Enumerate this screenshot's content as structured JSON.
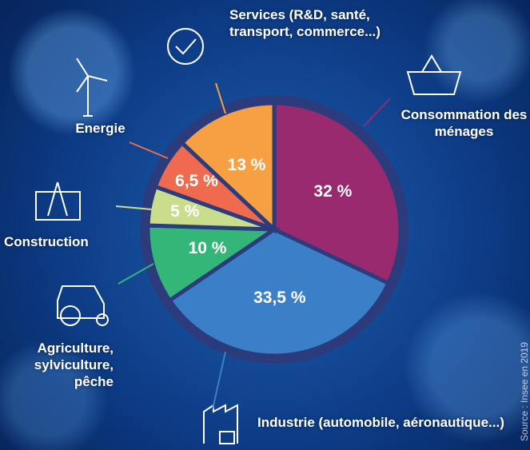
{
  "chart_data": {
    "type": "pie",
    "categories": [
      "Consommation des ménages",
      "Industrie (automobile, aéronautique...)",
      "Agriculture, sylviculture, pêche",
      "Construction",
      "Energie",
      "Services (R&D, santé, transport, commerce...)"
    ],
    "values": [
      32,
      33.5,
      10,
      5,
      6.5,
      13
    ],
    "value_labels": [
      "32 %",
      "33,5 %",
      "10 %",
      "5 %",
      "6,5 %",
      "13 %"
    ],
    "colors": [
      "#9a2a70",
      "#3b7fc9",
      "#35b679",
      "#c9dd8c",
      "#f06a4f",
      "#f6a043"
    ],
    "source": "Source : Insee en 2019"
  }
}
